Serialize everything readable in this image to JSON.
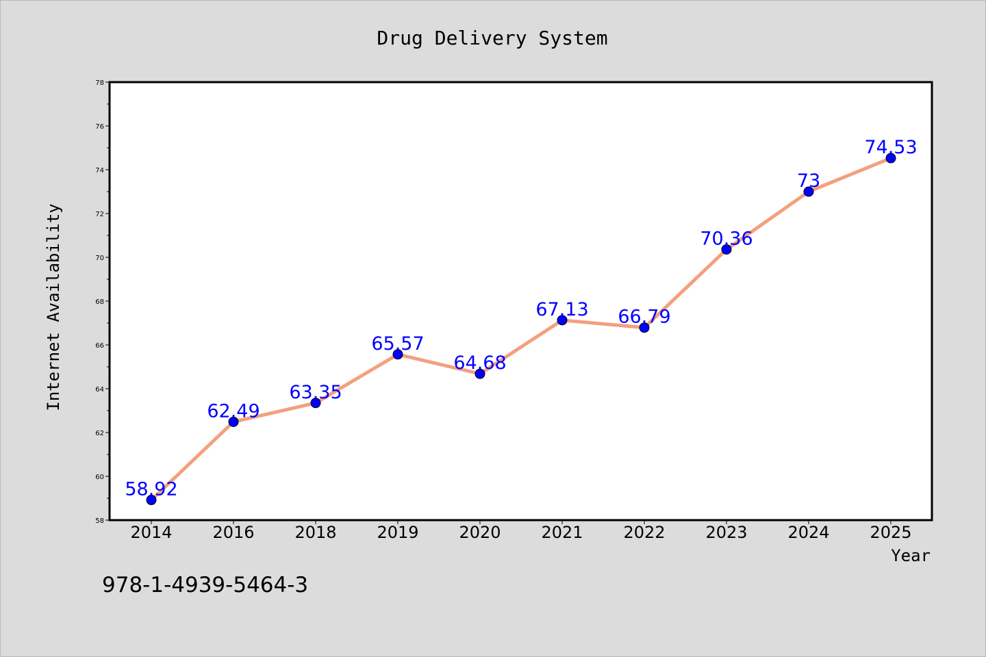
{
  "chart_data": {
    "type": "line",
    "title": "Drug Delivery System",
    "xlabel": "Year",
    "ylabel": "Internet Availability",
    "categories": [
      "2014",
      "2016",
      "2018",
      "2019",
      "2020",
      "2021",
      "2022",
      "2023",
      "2024",
      "2025"
    ],
    "series": [
      {
        "values": [
          58.92,
          62.49,
          63.35,
          65.57,
          64.68,
          67.13,
          66.79,
          70.36,
          73,
          74.53
        ],
        "labels": [
          "58.92",
          "62.49",
          "63.35",
          "65.57",
          "64.68",
          "67.13",
          "66.79",
          "70.36",
          "73",
          "74.53"
        ]
      }
    ],
    "ylim": [
      58,
      78
    ],
    "yticks": [
      58,
      60,
      62,
      64,
      66,
      68,
      70,
      72,
      74,
      76,
      78
    ],
    "grid": false,
    "colors": {
      "line": "#f4a07e",
      "marker": "#0000ff",
      "label": "#0000ff",
      "background": "#dcdcdc",
      "plot_background": "#ffffff"
    }
  },
  "footer_text": "978-1-4939-5464-3"
}
